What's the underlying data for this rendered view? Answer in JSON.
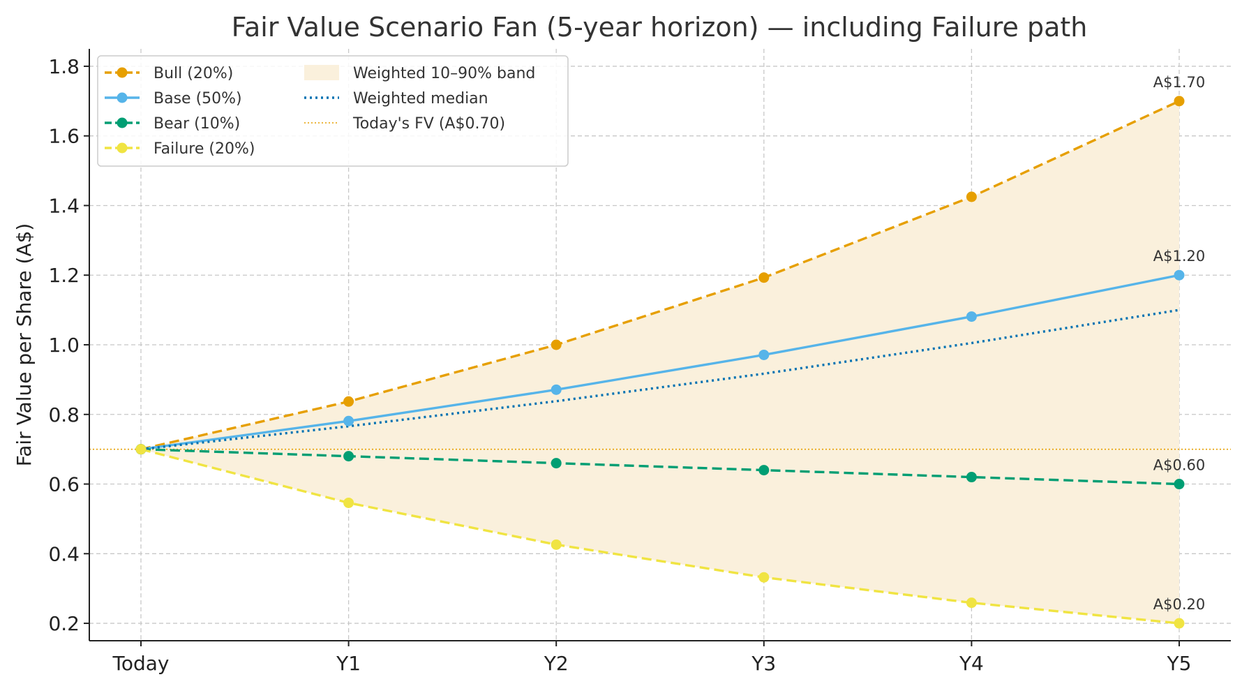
{
  "chart_data": {
    "type": "line",
    "title": "Fair Value Scenario Fan (5-year horizon) — including Failure path",
    "xlabel": "",
    "ylabel": "Fair Value per Share (A$)",
    "categories": [
      "Today",
      "Y1",
      "Y2",
      "Y3",
      "Y4",
      "Y5"
    ],
    "ylim": [
      0.15,
      1.85
    ],
    "yticks": [
      0.2,
      0.4,
      0.6,
      0.8,
      1.0,
      1.2,
      1.4,
      1.6,
      1.8
    ],
    "ytick_labels": [
      "0.2",
      "0.4",
      "0.6",
      "0.8",
      "1.0",
      "1.2",
      "1.4",
      "1.6",
      "1.8"
    ],
    "grid": true,
    "legend_position": "top-left",
    "series": [
      {
        "name": "Bull (20%)",
        "color": "#E69F00",
        "style": "dashed",
        "marker": true,
        "values": [
          0.7,
          0.837,
          1.0,
          1.193,
          1.425,
          1.7
        ]
      },
      {
        "name": "Base (50%)",
        "color": "#56B4E9",
        "style": "solid",
        "marker": true,
        "values": [
          0.7,
          0.781,
          0.871,
          0.971,
          1.081,
          1.2
        ]
      },
      {
        "name": "Bear (10%)",
        "color": "#009E73",
        "style": "dashed",
        "marker": true,
        "values": [
          0.7,
          0.68,
          0.66,
          0.64,
          0.62,
          0.6
        ]
      },
      {
        "name": "Failure (20%)",
        "color": "#F0E442",
        "style": "dashed",
        "marker": true,
        "values": [
          0.7,
          0.546,
          0.426,
          0.332,
          0.259,
          0.2
        ]
      }
    ],
    "band": {
      "name": "Weighted 10–90% band",
      "color": "#FAF0DC",
      "lower": [
        0.7,
        0.546,
        0.426,
        0.332,
        0.259,
        0.2
      ],
      "upper": [
        0.7,
        0.837,
        1.0,
        1.193,
        1.425,
        1.7
      ]
    },
    "median": {
      "name": "Weighted median",
      "color": "#0072B2",
      "style": "dotted",
      "values": [
        0.7,
        0.766,
        0.838,
        0.917,
        1.005,
        1.1
      ]
    },
    "reference_line": {
      "name": "Today's FV (A$0.70)",
      "color": "#E69F00",
      "value": 0.7
    },
    "annotations": [
      {
        "series": "Bull (20%)",
        "x": "Y5",
        "value": 1.7,
        "text": "A$1.70"
      },
      {
        "series": "Base (50%)",
        "x": "Y5",
        "value": 1.2,
        "text": "A$1.20"
      },
      {
        "series": "Bear (10%)",
        "x": "Y5",
        "value": 0.6,
        "text": "A$0.60"
      },
      {
        "series": "Failure (20%)",
        "x": "Y5",
        "value": 0.2,
        "text": "A$0.20"
      }
    ]
  }
}
